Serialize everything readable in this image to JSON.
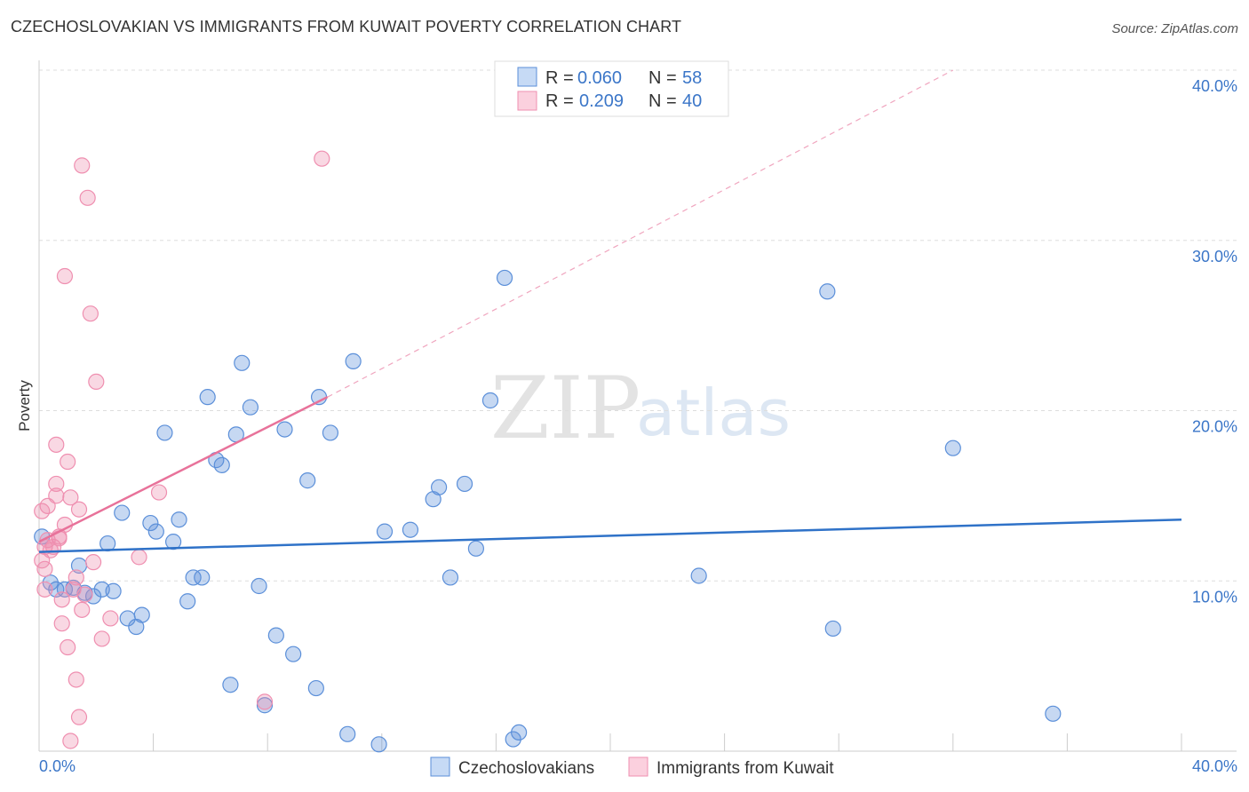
{
  "title": "CZECHOSLOVAKIAN VS IMMIGRANTS FROM KUWAIT POVERTY CORRELATION CHART",
  "source": "Source: ZipAtlas.com",
  "watermark": {
    "zip": "ZIP",
    "atlas": "atlas"
  },
  "legend": {
    "r_label": "R =",
    "n_label": "N =",
    "rows": [
      {
        "r": "0.060",
        "n": "58"
      },
      {
        "r": "0.209",
        "n": "40"
      }
    ]
  },
  "chart_data": {
    "type": "scatter",
    "title": "CZECHOSLOVAKIAN VS IMMIGRANTS FROM KUWAIT POVERTY CORRELATION CHART",
    "xlabel": "",
    "ylabel": "Poverty",
    "xlim": [
      0,
      40
    ],
    "ylim": [
      0,
      40
    ],
    "x_tick_labels": [
      "0.0%",
      "40.0%"
    ],
    "y_ticks": [
      10,
      20,
      30,
      40
    ],
    "y_tick_labels": [
      "10.0%",
      "20.0%",
      "30.0%",
      "40.0%"
    ],
    "grid": true,
    "legend_position": "top-center",
    "colors": {
      "czech": "#5b8fd9",
      "kuwait": "#ef8fb0",
      "czech_line": "#2f72c8",
      "kuwait_line": "#e8729a"
    },
    "series": [
      {
        "name": "Czechoslovakians",
        "r": 0.06,
        "n": 58,
        "trend": {
          "x0": 0,
          "y0": 11.7,
          "x1": 40,
          "y1": 13.6
        },
        "points": [
          [
            0.1,
            12.6
          ],
          [
            0.4,
            9.9
          ],
          [
            0.6,
            9.5
          ],
          [
            0.9,
            9.5
          ],
          [
            1.2,
            9.6
          ],
          [
            1.4,
            10.9
          ],
          [
            1.6,
            9.3
          ],
          [
            1.9,
            9.1
          ],
          [
            2.2,
            9.5
          ],
          [
            2.4,
            12.2
          ],
          [
            2.6,
            9.4
          ],
          [
            2.9,
            14.0
          ],
          [
            3.1,
            7.8
          ],
          [
            3.4,
            7.3
          ],
          [
            3.6,
            8.0
          ],
          [
            3.9,
            13.4
          ],
          [
            4.1,
            12.9
          ],
          [
            4.4,
            18.7
          ],
          [
            4.7,
            12.3
          ],
          [
            4.9,
            13.6
          ],
          [
            5.2,
            8.8
          ],
          [
            5.4,
            10.2
          ],
          [
            5.7,
            10.2
          ],
          [
            5.9,
            20.8
          ],
          [
            6.2,
            17.1
          ],
          [
            6.4,
            16.8
          ],
          [
            6.7,
            3.9
          ],
          [
            6.9,
            18.6
          ],
          [
            7.1,
            22.8
          ],
          [
            7.4,
            20.2
          ],
          [
            7.7,
            9.7
          ],
          [
            7.9,
            2.7
          ],
          [
            8.3,
            6.8
          ],
          [
            8.6,
            18.9
          ],
          [
            8.9,
            5.7
          ],
          [
            9.4,
            15.9
          ],
          [
            9.7,
            3.7
          ],
          [
            9.8,
            20.8
          ],
          [
            10.2,
            18.7
          ],
          [
            10.8,
            1.0
          ],
          [
            11.0,
            22.9
          ],
          [
            11.9,
            0.4
          ],
          [
            12.1,
            12.9
          ],
          [
            13.0,
            13.0
          ],
          [
            13.8,
            14.8
          ],
          [
            14.0,
            15.5
          ],
          [
            14.4,
            10.2
          ],
          [
            14.9,
            15.7
          ],
          [
            15.3,
            11.9
          ],
          [
            15.8,
            20.6
          ],
          [
            16.3,
            27.8
          ],
          [
            16.6,
            0.7
          ],
          [
            16.8,
            1.1
          ],
          [
            23.1,
            10.3
          ],
          [
            27.6,
            27.0
          ],
          [
            27.8,
            7.2
          ],
          [
            32.0,
            17.8
          ],
          [
            35.5,
            2.2
          ]
        ]
      },
      {
        "name": "Immigrants from Kuwait",
        "r": 0.209,
        "n": 40,
        "trend": {
          "x0": 0,
          "y0": 12.3,
          "x1": 10.1,
          "y1": 20.8
        },
        "trend_extension": {
          "x0": 10.1,
          "y0": 20.8,
          "x1": 32.0,
          "y1": 40.0
        },
        "points": [
          [
            0.1,
            11.2
          ],
          [
            0.1,
            14.1
          ],
          [
            0.2,
            12.0
          ],
          [
            0.2,
            10.7
          ],
          [
            0.2,
            9.5
          ],
          [
            0.3,
            14.4
          ],
          [
            0.3,
            12.4
          ],
          [
            0.4,
            11.8
          ],
          [
            0.5,
            12.0
          ],
          [
            0.6,
            15.7
          ],
          [
            0.6,
            15.0
          ],
          [
            0.6,
            18.0
          ],
          [
            0.7,
            12.6
          ],
          [
            0.7,
            12.5
          ],
          [
            0.8,
            8.9
          ],
          [
            0.8,
            7.5
          ],
          [
            0.9,
            13.3
          ],
          [
            0.9,
            27.9
          ],
          [
            1.0,
            6.1
          ],
          [
            1.0,
            17.0
          ],
          [
            1.1,
            14.9
          ],
          [
            1.1,
            0.6
          ],
          [
            1.2,
            9.5
          ],
          [
            1.3,
            4.2
          ],
          [
            1.3,
            10.2
          ],
          [
            1.4,
            2.0
          ],
          [
            1.4,
            14.2
          ],
          [
            1.5,
            34.4
          ],
          [
            1.5,
            8.3
          ],
          [
            1.6,
            9.2
          ],
          [
            1.7,
            32.5
          ],
          [
            1.8,
            25.7
          ],
          [
            1.9,
            11.1
          ],
          [
            2.0,
            21.7
          ],
          [
            2.2,
            6.6
          ],
          [
            2.5,
            7.8
          ],
          [
            3.5,
            11.4
          ],
          [
            4.2,
            15.2
          ],
          [
            7.9,
            2.9
          ],
          [
            9.9,
            34.8
          ]
        ]
      }
    ]
  }
}
